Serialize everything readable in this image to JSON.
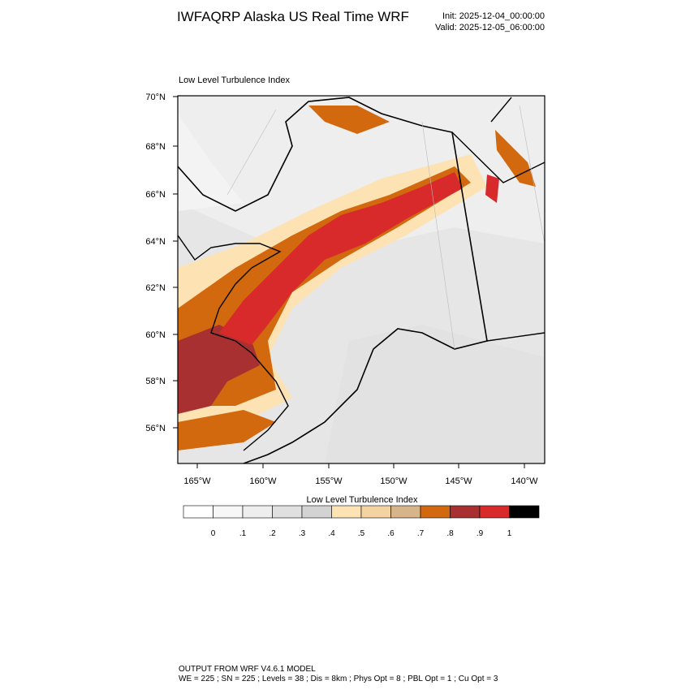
{
  "header": {
    "title": "IWFAQRP Alaska US Real Time WRF",
    "init": "Init: 2025-12-04_00:00:00",
    "valid": "Valid: 2025-12-05_06:00:00"
  },
  "map": {
    "title": "Low Level Turbulence Index",
    "lat_labels": [
      "70°N",
      "68°N",
      "66°N",
      "64°N",
      "62°N",
      "60°N",
      "58°N",
      "56°N"
    ],
    "lon_labels": [
      "165°W",
      "160°W",
      "155°W",
      "150°W",
      "145°W",
      "140°W"
    ]
  },
  "colorbar": {
    "title": "Low Level Turbulence Index",
    "labels": [
      "0",
      ".1",
      ".2",
      ".3",
      ".4",
      ".5",
      ".6",
      ".7",
      ".8",
      ".9",
      "1"
    ],
    "colors": [
      "#ffffff",
      "#f7f7f7",
      "#eeeeee",
      "#e0e0e0",
      "#d3d3d3",
      "#fde2b4",
      "#f5d3a1",
      "#d8b48a",
      "#d2690e",
      "#a93031",
      "#d82a2b",
      "#000000"
    ]
  },
  "footer": {
    "lines": [
      "OUTPUT FROM WRF V4.6.1 MODEL",
      "WE = 225 ; SN = 225 ; Levels = 38 ; Dis = 8km ; Phys Opt = 8 ; PBL Opt = 1 ; Cu Opt = 3"
    ]
  }
}
